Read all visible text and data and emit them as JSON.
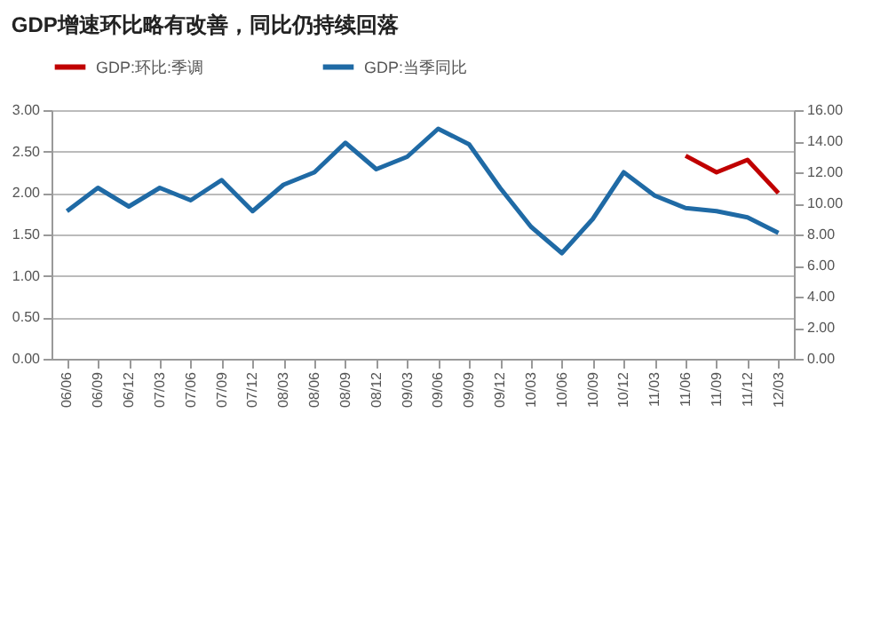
{
  "chart_data": {
    "type": "line",
    "title": "GDP增速环比略有改善，同比仍持续回落",
    "categories": [
      "06/06",
      "06/09",
      "06/12",
      "07/03",
      "07/06",
      "07/09",
      "07/12",
      "08/03",
      "08/06",
      "08/09",
      "08/12",
      "09/03",
      "09/06",
      "09/09",
      "09/12",
      "10/03",
      "10/06",
      "10/09",
      "10/12",
      "11/03",
      "11/06",
      "11/09",
      "11/12",
      "12/03"
    ],
    "series": [
      {
        "name": "GDP:环比:季调",
        "color": "#c00000",
        "axis": "y",
        "values": [
          null,
          null,
          null,
          null,
          null,
          null,
          null,
          null,
          null,
          null,
          null,
          null,
          null,
          null,
          null,
          null,
          null,
          null,
          null,
          null,
          2.45,
          2.25,
          2.4,
          2.0
        ]
      },
      {
        "name": "GDP:当季同比",
        "color": "#1f6aa5",
        "axis": "y2",
        "values": [
          9.5,
          11.0,
          9.8,
          11.0,
          10.2,
          11.5,
          9.5,
          11.2,
          12.0,
          13.9,
          12.2,
          13.0,
          14.8,
          13.8,
          11.0,
          8.5,
          6.8,
          9.0,
          12.0,
          10.5,
          9.7,
          9.5,
          9.1,
          8.1
        ]
      }
    ],
    "ylim": [
      0,
      3
    ],
    "yticks": [
      {
        "value": 0,
        "label": "0.00"
      },
      {
        "value": 0.5,
        "label": "0.50"
      },
      {
        "value": 1,
        "label": "1.00"
      },
      {
        "value": 1.5,
        "label": "1.50"
      },
      {
        "value": 2,
        "label": "2.00"
      },
      {
        "value": 2.5,
        "label": "2.50"
      },
      {
        "value": 3,
        "label": "3.00"
      }
    ],
    "y2lim": [
      0,
      16
    ],
    "y2ticks": [
      {
        "value": 0,
        "label": "0.00"
      },
      {
        "value": 2,
        "label": "2.00"
      },
      {
        "value": 4,
        "label": "4.00"
      },
      {
        "value": 6,
        "label": "6.00"
      },
      {
        "value": 8,
        "label": "8.00"
      },
      {
        "value": 10,
        "label": "10.00"
      },
      {
        "value": 12,
        "label": "12.00"
      },
      {
        "value": 14,
        "label": "14.00"
      },
      {
        "value": 16,
        "label": "16.00"
      }
    ],
    "grid": "y",
    "legend": "top",
    "line_style": "solid",
    "marker": "none"
  }
}
